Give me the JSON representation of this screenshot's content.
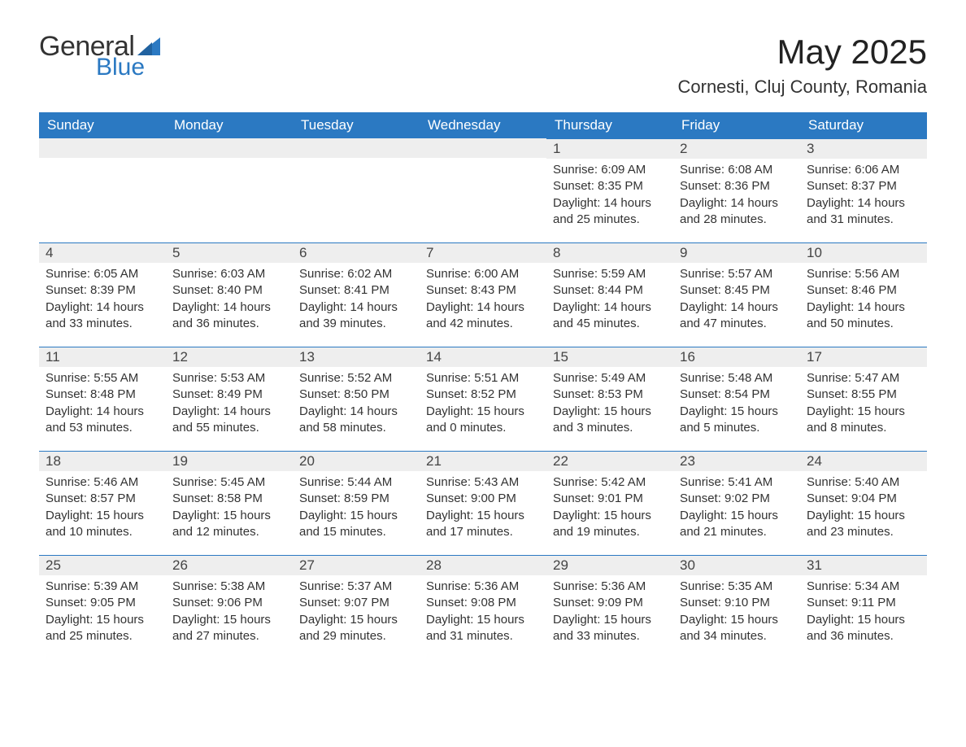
{
  "brand": {
    "part1": "General",
    "part2": "Blue",
    "accent": "#2b79c2"
  },
  "title": "May 2025",
  "location": "Cornesti, Cluj County, Romania",
  "weekdays": [
    "Sunday",
    "Monday",
    "Tuesday",
    "Wednesday",
    "Thursday",
    "Friday",
    "Saturday"
  ],
  "colors": {
    "header_bg": "#2b79c2",
    "header_text": "#ffffff",
    "dayrow_bg": "#eeeeee",
    "dayrow_border": "#2b79c2",
    "text": "#333333",
    "background": "#ffffff"
  },
  "typography": {
    "title_fontsize": 42,
    "location_fontsize": 22,
    "weekday_fontsize": 17,
    "daynum_fontsize": 17,
    "body_fontsize": 15,
    "font_family": "Arial"
  },
  "layout": {
    "columns": 7,
    "rows": 5,
    "leading_blanks": 4
  },
  "weeks": [
    [
      null,
      null,
      null,
      null,
      {
        "n": "1",
        "sunrise": "6:09 AM",
        "sunset": "8:35 PM",
        "daylight": "14 hours and 25 minutes."
      },
      {
        "n": "2",
        "sunrise": "6:08 AM",
        "sunset": "8:36 PM",
        "daylight": "14 hours and 28 minutes."
      },
      {
        "n": "3",
        "sunrise": "6:06 AM",
        "sunset": "8:37 PM",
        "daylight": "14 hours and 31 minutes."
      }
    ],
    [
      {
        "n": "4",
        "sunrise": "6:05 AM",
        "sunset": "8:39 PM",
        "daylight": "14 hours and 33 minutes."
      },
      {
        "n": "5",
        "sunrise": "6:03 AM",
        "sunset": "8:40 PM",
        "daylight": "14 hours and 36 minutes."
      },
      {
        "n": "6",
        "sunrise": "6:02 AM",
        "sunset": "8:41 PM",
        "daylight": "14 hours and 39 minutes."
      },
      {
        "n": "7",
        "sunrise": "6:00 AM",
        "sunset": "8:43 PM",
        "daylight": "14 hours and 42 minutes."
      },
      {
        "n": "8",
        "sunrise": "5:59 AM",
        "sunset": "8:44 PM",
        "daylight": "14 hours and 45 minutes."
      },
      {
        "n": "9",
        "sunrise": "5:57 AM",
        "sunset": "8:45 PM",
        "daylight": "14 hours and 47 minutes."
      },
      {
        "n": "10",
        "sunrise": "5:56 AM",
        "sunset": "8:46 PM",
        "daylight": "14 hours and 50 minutes."
      }
    ],
    [
      {
        "n": "11",
        "sunrise": "5:55 AM",
        "sunset": "8:48 PM",
        "daylight": "14 hours and 53 minutes."
      },
      {
        "n": "12",
        "sunrise": "5:53 AM",
        "sunset": "8:49 PM",
        "daylight": "14 hours and 55 minutes."
      },
      {
        "n": "13",
        "sunrise": "5:52 AM",
        "sunset": "8:50 PM",
        "daylight": "14 hours and 58 minutes."
      },
      {
        "n": "14",
        "sunrise": "5:51 AM",
        "sunset": "8:52 PM",
        "daylight": "15 hours and 0 minutes."
      },
      {
        "n": "15",
        "sunrise": "5:49 AM",
        "sunset": "8:53 PM",
        "daylight": "15 hours and 3 minutes."
      },
      {
        "n": "16",
        "sunrise": "5:48 AM",
        "sunset": "8:54 PM",
        "daylight": "15 hours and 5 minutes."
      },
      {
        "n": "17",
        "sunrise": "5:47 AM",
        "sunset": "8:55 PM",
        "daylight": "15 hours and 8 minutes."
      }
    ],
    [
      {
        "n": "18",
        "sunrise": "5:46 AM",
        "sunset": "8:57 PM",
        "daylight": "15 hours and 10 minutes."
      },
      {
        "n": "19",
        "sunrise": "5:45 AM",
        "sunset": "8:58 PM",
        "daylight": "15 hours and 12 minutes."
      },
      {
        "n": "20",
        "sunrise": "5:44 AM",
        "sunset": "8:59 PM",
        "daylight": "15 hours and 15 minutes."
      },
      {
        "n": "21",
        "sunrise": "5:43 AM",
        "sunset": "9:00 PM",
        "daylight": "15 hours and 17 minutes."
      },
      {
        "n": "22",
        "sunrise": "5:42 AM",
        "sunset": "9:01 PM",
        "daylight": "15 hours and 19 minutes."
      },
      {
        "n": "23",
        "sunrise": "5:41 AM",
        "sunset": "9:02 PM",
        "daylight": "15 hours and 21 minutes."
      },
      {
        "n": "24",
        "sunrise": "5:40 AM",
        "sunset": "9:04 PM",
        "daylight": "15 hours and 23 minutes."
      }
    ],
    [
      {
        "n": "25",
        "sunrise": "5:39 AM",
        "sunset": "9:05 PM",
        "daylight": "15 hours and 25 minutes."
      },
      {
        "n": "26",
        "sunrise": "5:38 AM",
        "sunset": "9:06 PM",
        "daylight": "15 hours and 27 minutes."
      },
      {
        "n": "27",
        "sunrise": "5:37 AM",
        "sunset": "9:07 PM",
        "daylight": "15 hours and 29 minutes."
      },
      {
        "n": "28",
        "sunrise": "5:36 AM",
        "sunset": "9:08 PM",
        "daylight": "15 hours and 31 minutes."
      },
      {
        "n": "29",
        "sunrise": "5:36 AM",
        "sunset": "9:09 PM",
        "daylight": "15 hours and 33 minutes."
      },
      {
        "n": "30",
        "sunrise": "5:35 AM",
        "sunset": "9:10 PM",
        "daylight": "15 hours and 34 minutes."
      },
      {
        "n": "31",
        "sunrise": "5:34 AM",
        "sunset": "9:11 PM",
        "daylight": "15 hours and 36 minutes."
      }
    ]
  ],
  "labels": {
    "sunrise": "Sunrise: ",
    "sunset": "Sunset: ",
    "daylight": "Daylight: "
  }
}
